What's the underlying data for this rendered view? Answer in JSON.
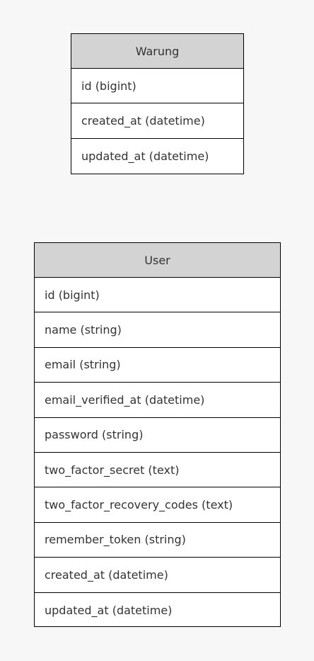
{
  "entities": [
    {
      "name": "Warung",
      "fields": [
        "id (bigint)",
        "created_at (datetime)",
        "updated_at (datetime)"
      ]
    },
    {
      "name": "User",
      "fields": [
        "id (bigint)",
        "name (string)",
        "email (string)",
        "email_verified_at (datetime)",
        "password (string)",
        "two_factor_secret (text)",
        "two_factor_recovery_codes (text)",
        "remember_token (string)",
        "created_at (datetime)",
        "updated_at (datetime)"
      ]
    }
  ]
}
